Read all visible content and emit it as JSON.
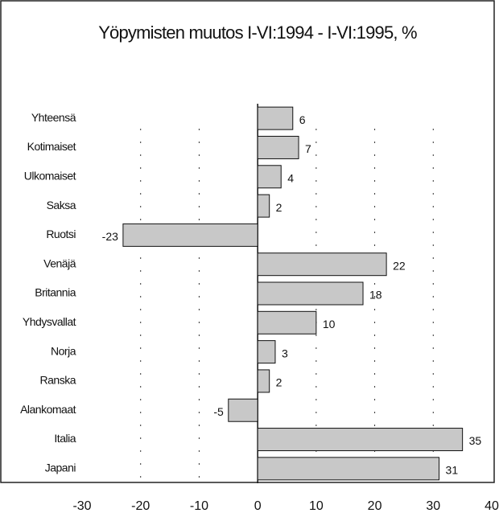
{
  "chart_data": {
    "type": "bar",
    "orientation": "horizontal",
    "title": "Yöpymisten muutos I-VI:1994 - I-VI:1995, %",
    "categories": [
      "Yhteensä",
      "Kotimaiset",
      "Ulkomaiset",
      "Saksa",
      "Ruotsi",
      "Venäjä",
      "Britannia",
      "Yhdysvallat",
      "Norja",
      "Ranska",
      "Alankomaat",
      "Italia",
      "Japani"
    ],
    "values": [
      6,
      7,
      4,
      2,
      -23,
      22,
      18,
      10,
      3,
      2,
      -5,
      35,
      31
    ],
    "color": "#c8c8c8",
    "xlim": [
      -30,
      40
    ],
    "xticks": [
      -30,
      -20,
      -10,
      0,
      10,
      20,
      30,
      40
    ],
    "grid": true
  }
}
